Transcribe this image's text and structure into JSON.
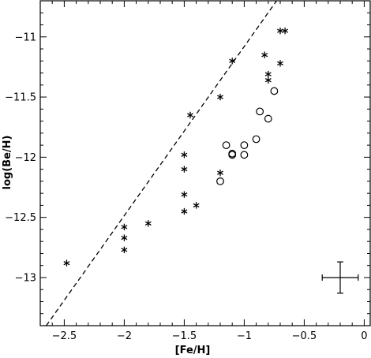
{
  "chart_data": {
    "type": "scatter",
    "title": "",
    "xlabel": "[Fe/H]",
    "ylabel": "log(Be/H)",
    "xlim": [
      -2.7,
      0.05
    ],
    "ylim": [
      -13.4,
      -10.7
    ],
    "xticks": [
      -2.5,
      -2,
      -1.5,
      -1,
      -0.5,
      0
    ],
    "xtick_labels": [
      "-2.5",
      "-2",
      "-1.5",
      "-1",
      "-0.5",
      "0"
    ],
    "yticks": [
      -13,
      -12.5,
      -12,
      -11.5,
      -11
    ],
    "ytick_labels": [
      "-13",
      "-12.5",
      "-12",
      "-11.5",
      "-11"
    ],
    "grid": false,
    "series": [
      {
        "marker": "asterisk",
        "x": [
          -2.48,
          -2.0,
          -2.0,
          -2.0,
          -1.8,
          -1.5,
          -1.5,
          -1.5,
          -1.5,
          -1.4,
          -1.45,
          -1.2,
          -1.2,
          -1.1,
          -0.83,
          -0.8,
          -0.8,
          -0.7,
          -0.7,
          -0.66
        ],
        "y": [
          -12.88,
          -12.58,
          -12.67,
          -12.77,
          -12.55,
          -11.98,
          -12.1,
          -12.31,
          -12.45,
          -12.4,
          -11.65,
          -11.5,
          -12.13,
          -11.2,
          -11.15,
          -11.31,
          -11.36,
          -11.22,
          -10.95,
          -10.95
        ]
      },
      {
        "marker": "circle",
        "x": [
          -1.2,
          -1.15,
          -1.1,
          -1.1,
          -1.0,
          -1.0,
          -0.9,
          -0.87,
          -0.8,
          -0.75
        ],
        "y": [
          -12.2,
          -11.9,
          -11.97,
          -11.98,
          -11.9,
          -11.98,
          -11.85,
          -11.62,
          -11.68,
          -11.45
        ]
      }
    ],
    "fit_line": {
      "style": "dashed",
      "x": [
        -2.65,
        -0.73
      ],
      "y": [
        -13.4,
        -10.7
      ]
    },
    "error_bar": {
      "x": -0.2,
      "y": -13.0,
      "xerr": 0.15,
      "yerr": 0.13
    }
  }
}
